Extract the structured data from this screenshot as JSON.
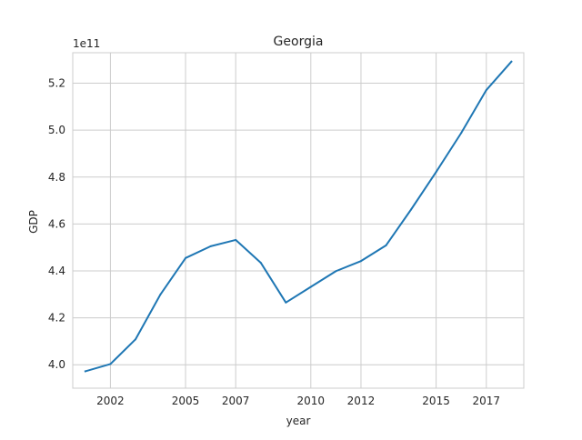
{
  "chart_data": {
    "type": "line",
    "title": "Georgia",
    "xlabel": "year",
    "ylabel": "GDP",
    "y_offset_text": "1e11",
    "y_multiplier": 100000000000,
    "x": [
      "2001-01-01",
      "2002-01-01",
      "2003-01-01",
      "2004-01-01",
      "2005-01-01",
      "2006-01-01",
      "2007-01-01",
      "2008-01-01",
      "2009-01-01",
      "2010-01-01",
      "2011-01-01",
      "2012-01-01",
      "2013-01-01",
      "2014-01-01",
      "2015-01-01",
      "2016-01-01",
      "2017-01-01",
      "2018-01-01"
    ],
    "series": [
      {
        "name": "",
        "color": "#1f77b4",
        "values": [
          3.972,
          4.003,
          4.108,
          4.3,
          4.455,
          4.505,
          4.532,
          4.435,
          4.265,
          4.332,
          4.399,
          4.442,
          4.509,
          4.662,
          4.822,
          4.988,
          5.171,
          5.292
        ]
      }
    ],
    "xlim": [
      "2000-07-01",
      "2018-07-01"
    ],
    "ylim": [
      3.9,
      5.33
    ],
    "xticks": [
      {
        "date": "2002-01-01",
        "label": "2002"
      },
      {
        "date": "2004-12-31",
        "label": "2005"
      },
      {
        "date": "2007-01-01",
        "label": "2007"
      },
      {
        "date": "2009-12-31",
        "label": "2010"
      },
      {
        "date": "2012-01-01",
        "label": "2012"
      },
      {
        "date": "2014-12-31",
        "label": "2015"
      },
      {
        "date": "2017-01-01",
        "label": "2017"
      }
    ],
    "yticks": [
      4.0,
      4.2,
      4.4,
      4.6,
      4.8,
      5.0,
      5.2
    ],
    "grid": true,
    "colors": {
      "grid": "#cccccc",
      "spine": "#cccccc",
      "text": "#262626"
    }
  }
}
